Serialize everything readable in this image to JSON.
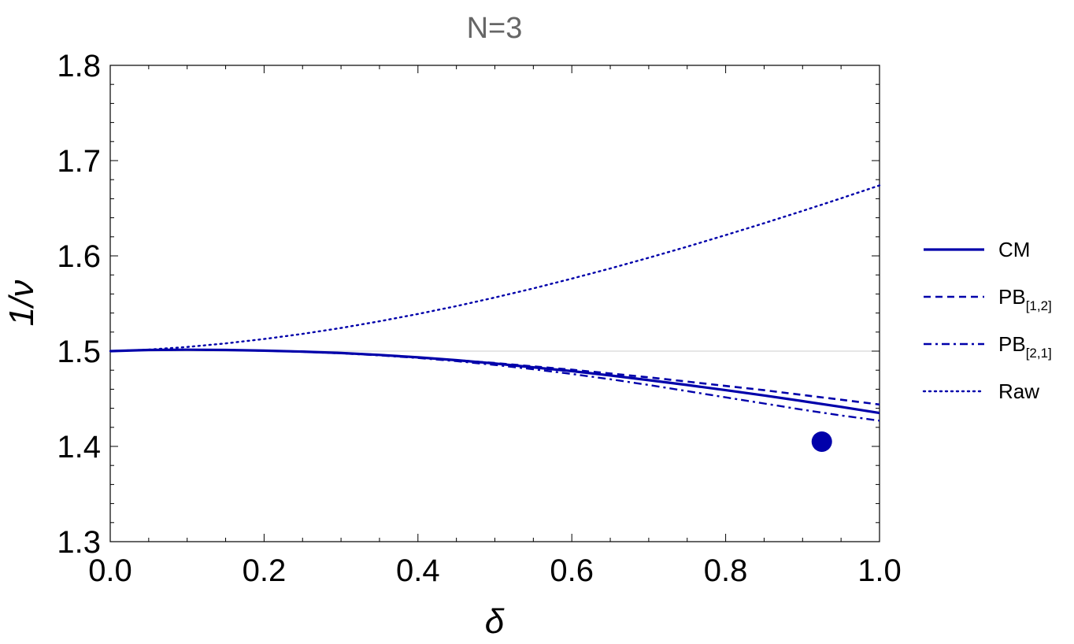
{
  "chart_data": {
    "type": "line",
    "title": "N=3",
    "xlabel": "δ",
    "ylabel": "1/ν",
    "xlim": [
      0.0,
      1.0
    ],
    "ylim": [
      1.3,
      1.8
    ],
    "xticks": [
      "0.0",
      "0.2",
      "0.4",
      "0.6",
      "0.8",
      "1.0"
    ],
    "yticks": [
      "1.3",
      "1.4",
      "1.5",
      "1.6",
      "1.7",
      "1.8"
    ],
    "reference_line_y": 1.5,
    "grid": false,
    "legend_position": "right",
    "colors": {
      "series": "#0000aa",
      "title": "#666666",
      "reference": "#cccccc"
    },
    "series": [
      {
        "name": "CM",
        "style": "solid",
        "x": [
          0.0,
          0.05,
          0.1,
          0.15,
          0.2,
          0.25,
          0.3,
          0.35,
          0.4,
          0.45,
          0.5,
          0.55,
          0.6,
          0.65,
          0.7,
          0.75,
          0.8,
          0.85,
          0.9,
          0.95,
          1.0
        ],
        "y": [
          1.5,
          1.5012,
          1.5015,
          1.5012,
          1.5005,
          1.4995,
          1.498,
          1.496,
          1.4935,
          1.4905,
          1.487,
          1.483,
          1.479,
          1.4745,
          1.4695,
          1.4645,
          1.459,
          1.4535,
          1.4475,
          1.4415,
          1.435
        ]
      },
      {
        "name": "PB[1,2]",
        "name_main": "PB",
        "name_sub": "[1,2]",
        "style": "dashed",
        "x": [
          0.0,
          0.05,
          0.1,
          0.15,
          0.2,
          0.25,
          0.3,
          0.35,
          0.4,
          0.45,
          0.5,
          0.55,
          0.6,
          0.65,
          0.7,
          0.75,
          0.8,
          0.85,
          0.9,
          0.95,
          1.0
        ],
        "y": [
          1.5,
          1.5012,
          1.5015,
          1.5012,
          1.5005,
          1.4995,
          1.498,
          1.496,
          1.4935,
          1.4905,
          1.4875,
          1.484,
          1.4805,
          1.4765,
          1.4725,
          1.468,
          1.4635,
          1.459,
          1.454,
          1.449,
          1.444
        ]
      },
      {
        "name": "PB[2,1]",
        "name_main": "PB",
        "name_sub": "[2,1]",
        "style": "dashdot",
        "x": [
          0.0,
          0.05,
          0.1,
          0.15,
          0.2,
          0.25,
          0.3,
          0.35,
          0.4,
          0.45,
          0.5,
          0.55,
          0.6,
          0.65,
          0.7,
          0.75,
          0.8,
          0.85,
          0.9,
          0.95,
          1.0
        ],
        "y": [
          1.5,
          1.5012,
          1.5015,
          1.5012,
          1.5004,
          1.4993,
          1.4977,
          1.4955,
          1.4928,
          1.4895,
          1.4855,
          1.481,
          1.476,
          1.4705,
          1.4645,
          1.458,
          1.4515,
          1.445,
          1.4385,
          1.4325,
          1.427
        ]
      },
      {
        "name": "Raw",
        "style": "dotted",
        "x": [
          0.0,
          0.05,
          0.1,
          0.15,
          0.2,
          0.25,
          0.3,
          0.35,
          0.4,
          0.45,
          0.5,
          0.55,
          0.6,
          0.65,
          0.7,
          0.75,
          0.8,
          0.85,
          0.9,
          0.95,
          1.0
        ],
        "y": [
          1.5,
          1.5016,
          1.5044,
          1.5081,
          1.5127,
          1.5181,
          1.5243,
          1.5313,
          1.539,
          1.5473,
          1.5563,
          1.5659,
          1.5761,
          1.5868,
          1.598,
          1.6097,
          1.6218,
          1.6343,
          1.6472,
          1.6604,
          1.674
        ]
      }
    ],
    "points": [
      {
        "x": 0.925,
        "y": 1.405
      }
    ]
  }
}
